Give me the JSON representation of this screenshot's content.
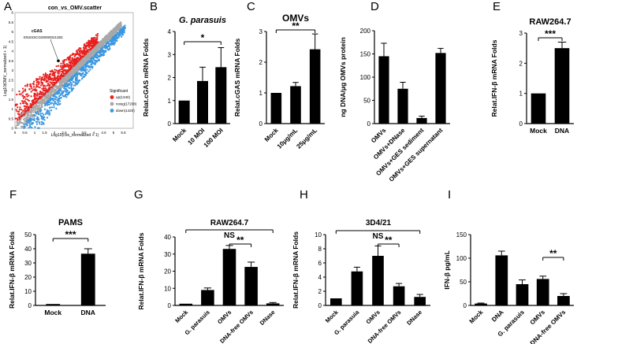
{
  "figure": {
    "colors": {
      "bar": "#000000",
      "up": "#e8201f",
      "nosig": "#a8a8a8",
      "down": "#3b97e0",
      "axis": "#000000"
    }
  },
  "chart_data": [
    {
      "panel": "A",
      "type": "scatter",
      "title": "con_vs_OMV.scatter",
      "xlabel": "Log10(cos_normalized + 1)",
      "ylabel": "Log10(OMV_normalized + 1)",
      "xlim": [
        0,
        6
      ],
      "ylim": [
        0,
        6
      ],
      "xticks": [
        "0",
        "0.5",
        "1",
        "1.5",
        "2",
        "2.5",
        "3",
        "3.5",
        "4",
        "4.5",
        "5",
        "5.5"
      ],
      "yticks": [
        "0",
        "0.5",
        "1",
        "1.5",
        "2",
        "2.5",
        "3",
        "3.5",
        "4",
        "4.5",
        "5",
        "5.5",
        "6"
      ],
      "legend_title": "Significant",
      "legend": [
        {
          "name": "up(1340)",
          "color": "#e8201f"
        },
        {
          "name": "nosig(17208)",
          "color": "#a8a8a8"
        },
        {
          "name": "down(1420)",
          "color": "#3b97e0"
        }
      ],
      "annotation": [
        "cGAS",
        "ENSSSCG00000021383"
      ],
      "highlight_point": {
        "x": 2.2,
        "y": 3.5
      },
      "series": [
        {
          "name": "up",
          "count": 1340
        },
        {
          "name": "nosig",
          "count": 17208
        },
        {
          "name": "down",
          "count": 1420
        }
      ]
    },
    {
      "panel": "B",
      "type": "bar",
      "title": "G. parasuis",
      "ylabel": "Relat.cGAS mRNA Folds",
      "categories": [
        "Mock",
        "10 MOI",
        "100 MOI"
      ],
      "values": [
        1.0,
        1.85,
        2.45
      ],
      "errors": [
        0,
        0.6,
        0.85
      ],
      "ylim": [
        0,
        4
      ],
      "yticks": [
        0,
        1,
        2,
        3,
        4
      ],
      "significance": [
        {
          "from": 0,
          "to": 2,
          "label": "*"
        }
      ]
    },
    {
      "panel": "C",
      "type": "bar",
      "title": "OMVs",
      "ylabel": "Relat.cGAS mRNA Folds",
      "categories": [
        "Mock",
        "10μg/mL",
        "25μg/mL"
      ],
      "values": [
        1.0,
        1.22,
        2.42
      ],
      "errors": [
        0,
        0.12,
        0.5
      ],
      "ylim": [
        0,
        3
      ],
      "yticks": [
        0,
        1,
        2,
        3
      ],
      "significance": [
        {
          "from": 0,
          "to": 2,
          "label": "**"
        }
      ]
    },
    {
      "panel": "D",
      "type": "bar",
      "title": "",
      "ylabel": "ng DNA/μg OMVs protein",
      "categories": [
        "OMVs",
        "OMVs+DNase",
        "OMVs+GES sediment",
        "OMVs+GES supernatant"
      ],
      "values": [
        145,
        75,
        12,
        152
      ],
      "errors": [
        28,
        14,
        4,
        10
      ],
      "ylim": [
        0,
        200
      ],
      "yticks": [
        0,
        50,
        100,
        150,
        200
      ],
      "significance": []
    },
    {
      "panel": "E",
      "type": "bar",
      "title": "RAW264.7",
      "ylabel": "Relat.IFN-β mRNA Folds",
      "categories": [
        "Mock",
        "DNA"
      ],
      "values": [
        1.0,
        2.5
      ],
      "errors": [
        0,
        0.2
      ],
      "ylim": [
        0,
        3
      ],
      "yticks": [
        0,
        1,
        2,
        3
      ],
      "significance": [
        {
          "from": 0,
          "to": 1,
          "label": "***"
        }
      ]
    },
    {
      "panel": "F",
      "type": "bar",
      "title": "PAMS",
      "ylabel": "Relat.IFN-β mRNA Folds",
      "categories": [
        "Mock",
        "DNA"
      ],
      "values": [
        1.0,
        36.5
      ],
      "errors": [
        0,
        3.5
      ],
      "ylim": [
        0,
        50
      ],
      "yticks": [
        0,
        10,
        20,
        30,
        40,
        50
      ],
      "significance": [
        {
          "from": 0,
          "to": 1,
          "label": "***"
        }
      ]
    },
    {
      "panel": "G",
      "type": "bar",
      "title": "RAW264.7",
      "ylabel": "Relat.IFN-β mRNA Folds",
      "categories": [
        "Mock",
        "G. parasuis",
        "OMVs",
        "DNA-free OMVs",
        "DNase"
      ],
      "values": [
        1.0,
        9.0,
        33.0,
        22.5,
        1.2
      ],
      "errors": [
        0,
        1.2,
        2.0,
        2.8,
        0.5
      ],
      "ylim": [
        0,
        40
      ],
      "yticks": [
        0,
        10,
        20,
        30,
        40
      ],
      "significance": [
        {
          "from": 0,
          "to": 4,
          "label": "NS"
        },
        {
          "from": 2,
          "to": 3,
          "label": "**"
        }
      ]
    },
    {
      "panel": "H",
      "type": "bar",
      "title": "3D4/21",
      "ylabel": "Relat.IFN-β mRNA Folds",
      "categories": [
        "Mock",
        "G. parasuia",
        "OMVs",
        "DNA-free OMVs",
        "DNase"
      ],
      "values": [
        1.0,
        4.8,
        7.0,
        2.7,
        1.2
      ],
      "errors": [
        0,
        0.6,
        1.4,
        0.4,
        0.35
      ],
      "ylim": [
        0,
        10
      ],
      "yticks": [
        0,
        2,
        4,
        6,
        8,
        10
      ],
      "significance": [
        {
          "from": 0,
          "to": 4,
          "label": "NS"
        },
        {
          "from": 2,
          "to": 3,
          "label": "**"
        }
      ]
    },
    {
      "panel": "I",
      "type": "bar",
      "title": "",
      "ylabel": "IFN-β pg/mL",
      "categories": [
        "Mock",
        "DNA",
        "G. parasuis",
        "OMVs",
        "DNA-free OMVs"
      ],
      "values": [
        4,
        106,
        45,
        56,
        20
      ],
      "errors": [
        1,
        9,
        9,
        6,
        5
      ],
      "ylim": [
        0,
        150
      ],
      "yticks": [
        0,
        50,
        100,
        150
      ],
      "significance": [
        {
          "from": 3,
          "to": 4,
          "label": "**"
        }
      ]
    }
  ]
}
